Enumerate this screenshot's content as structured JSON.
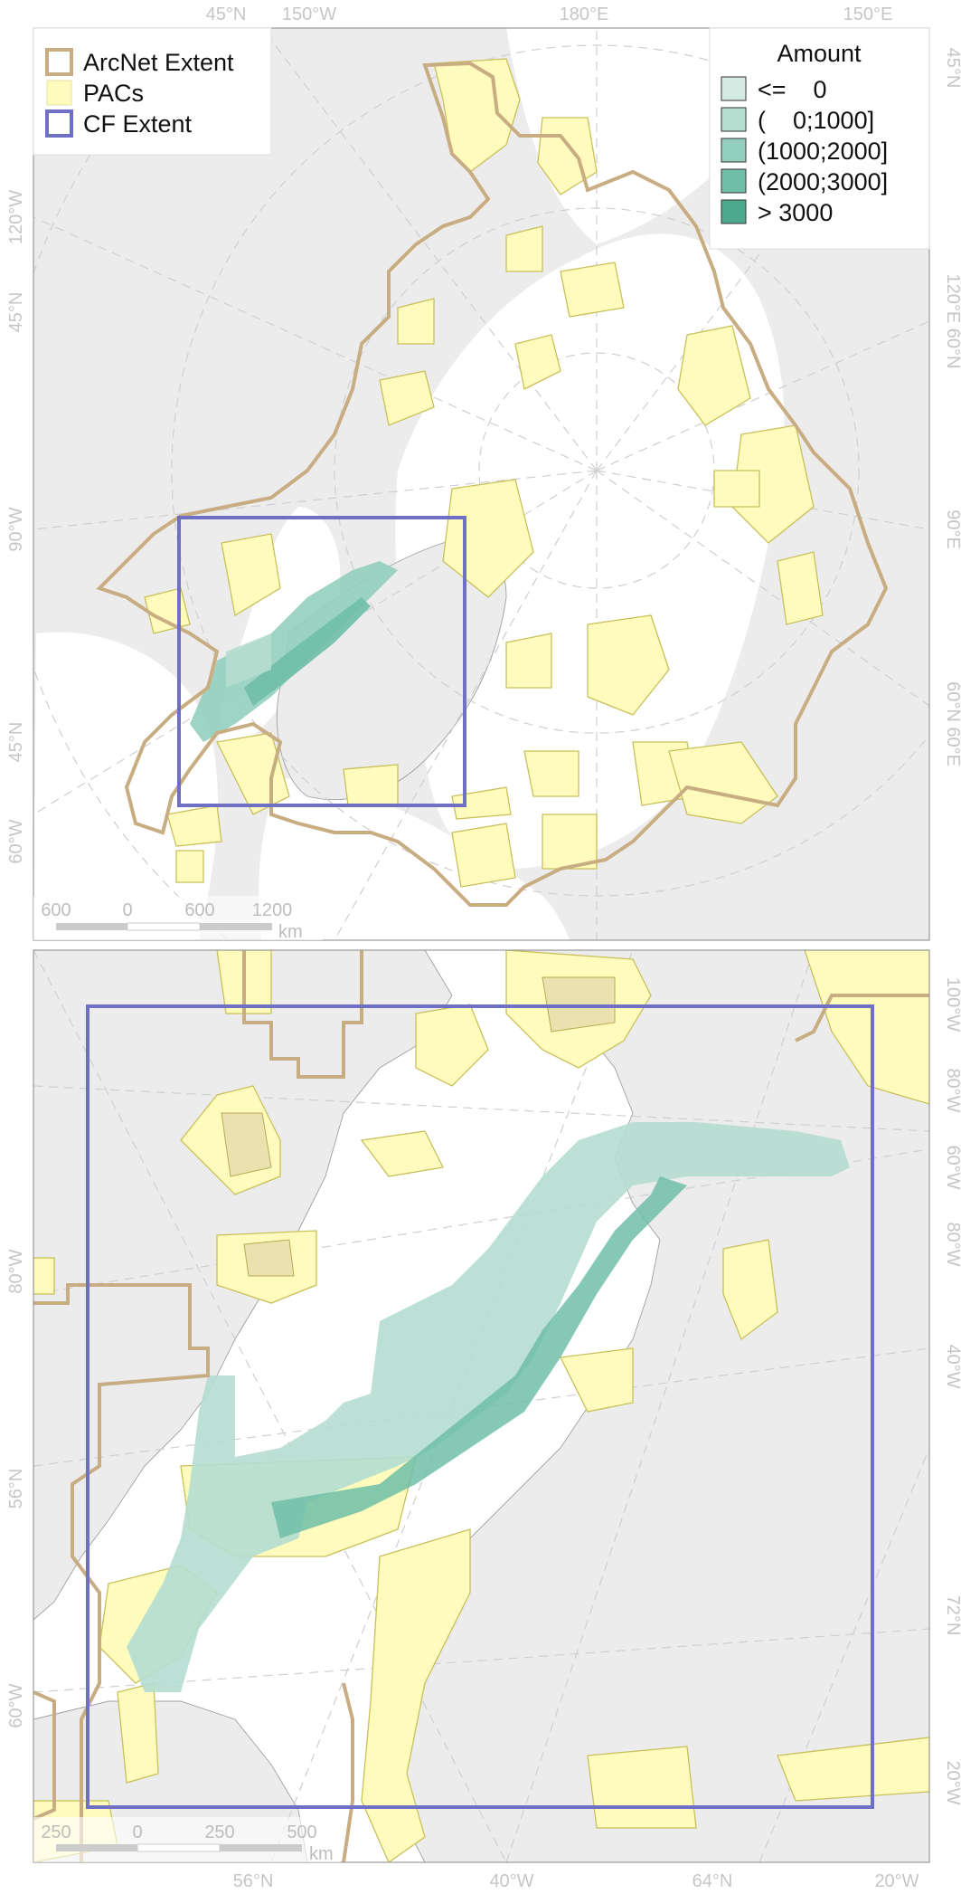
{
  "top_map": {
    "graticule_labels": {
      "top": [
        "45°N",
        "150°W",
        "180°E",
        "150°E"
      ],
      "left": [
        "120°W",
        "45°N",
        "90°W",
        "45°N",
        "60°W"
      ],
      "right": [
        "45°N",
        "120°E 60°N",
        "90°E",
        "60°N 60°E"
      ]
    },
    "scale_bar": {
      "ticks": [
        "600",
        "0",
        "600",
        "1200"
      ],
      "unit": "km"
    }
  },
  "legend_extents": {
    "items": [
      {
        "label": "ArcNet Extent",
        "swatch_color": "#c9ad82",
        "style": "outline"
      },
      {
        "label": "PACs",
        "swatch_color": "#fffbbd",
        "style": "fill"
      },
      {
        "label": "CF Extent",
        "swatch_color": "#6f6fc6",
        "style": "outline"
      }
    ]
  },
  "legend_amount": {
    "title": "Amount",
    "items": [
      {
        "label": "<=    0",
        "color": "#d4ebe3"
      },
      {
        "label": "(    0;1000]",
        "color": "#b5ddd0"
      },
      {
        "label": "(1000;2000]",
        "color": "#93cfbd"
      },
      {
        "label": "(2000;3000]",
        "color": "#6fbea8"
      },
      {
        "label": "> 3000",
        "color": "#4da98e"
      }
    ]
  },
  "bottom_map": {
    "graticule_labels": {
      "bottom": [
        "56°N",
        "40°W",
        "64°N",
        "20°W"
      ],
      "left": [
        "80°W",
        "56°N",
        "60°W"
      ],
      "right": [
        "100°W",
        "80°W",
        "60°W",
        "80°W",
        "40°W",
        "72°N",
        "20°W"
      ]
    },
    "scale_bar": {
      "ticks": [
        "250",
        "0",
        "250",
        "500"
      ],
      "unit": "km"
    }
  }
}
